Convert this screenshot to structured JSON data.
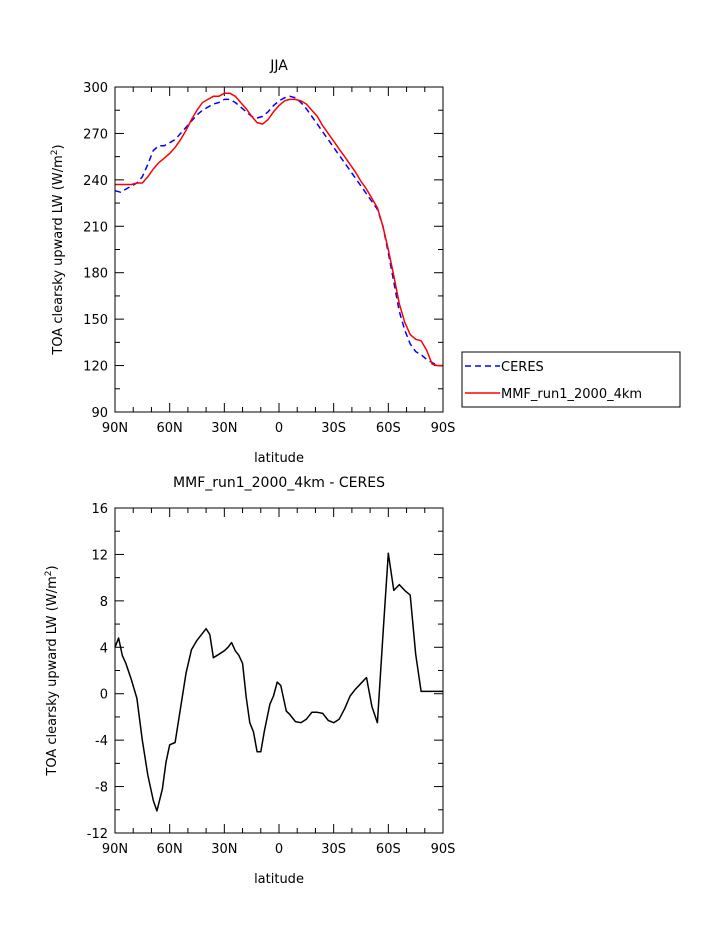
{
  "chart_data": [
    {
      "type": "line",
      "title": "JJA",
      "xlabel": "latitude",
      "ylabel_main": "TOA clearsky upward LW (W/m",
      "ylabel_sup": "2",
      "ylabel_end": ")",
      "xlim": [
        90,
        -90
      ],
      "ylim": [
        90,
        300
      ],
      "xticks": [
        90,
        60,
        30,
        0,
        -30,
        -60,
        -90
      ],
      "xtick_labels": [
        "90N",
        "60N",
        "30N",
        "0",
        "30S",
        "60S",
        "90S"
      ],
      "yticks": [
        90,
        120,
        150,
        180,
        210,
        240,
        270,
        300
      ],
      "ytick_labels": [
        "90",
        "120",
        "150",
        "180",
        "210",
        "240",
        "270",
        "300"
      ],
      "legend_position": "outside-right",
      "series": [
        {
          "name": "CERES",
          "color": "#0000ff",
          "dash": "dashed",
          "x": [
            90,
            87,
            84,
            81,
            78,
            75,
            72,
            69,
            66,
            63,
            60,
            57,
            54,
            51,
            48,
            45,
            42,
            39,
            36,
            33,
            30,
            27,
            24,
            21,
            18,
            15,
            12,
            9,
            6,
            3,
            0,
            -3,
            -6,
            -9,
            -12,
            -15,
            -18,
            -21,
            -24,
            -27,
            -30,
            -33,
            -36,
            -39,
            -42,
            -45,
            -48,
            -51,
            -54,
            -57,
            -60,
            -63,
            -66,
            -69,
            -72,
            -75,
            -78,
            -81,
            -84,
            -87,
            -90
          ],
          "y": [
            233,
            232,
            234,
            236,
            238,
            242,
            250,
            259,
            262,
            262,
            264,
            266,
            270,
            274,
            278,
            282,
            285,
            287,
            289,
            290,
            292,
            292,
            290,
            287,
            284,
            281,
            280,
            281,
            284,
            288,
            291,
            293,
            294,
            293,
            290,
            286,
            281,
            276,
            271,
            266,
            261,
            256,
            251,
            246,
            241,
            236,
            231,
            226,
            221,
            210,
            193,
            174,
            155,
            143,
            134,
            129,
            127,
            124,
            122,
            120,
            120
          ]
        },
        {
          "name": "MMF_run1_2000_4km",
          "color": "#ff0000",
          "dash": "solid",
          "x": [
            90,
            87,
            84,
            81,
            78,
            75,
            72,
            69,
            66,
            63,
            60,
            57,
            54,
            51,
            48,
            45,
            42,
            39,
            36,
            33,
            30,
            27,
            24,
            21,
            18,
            15,
            12,
            9,
            6,
            3,
            0,
            -3,
            -6,
            -9,
            -12,
            -15,
            -18,
            -21,
            -24,
            -27,
            -30,
            -33,
            -36,
            -39,
            -42,
            -45,
            -48,
            -51,
            -54,
            -57,
            -60,
            -63,
            -66,
            -69,
            -72,
            -75,
            -78,
            -81,
            -84,
            -87,
            -90
          ],
          "y": [
            237,
            237,
            237,
            237,
            238,
            238,
            242,
            247,
            251,
            254,
            257,
            261,
            266,
            272,
            279,
            285,
            290,
            292,
            294,
            294,
            296,
            296,
            294,
            290,
            286,
            281,
            277,
            276,
            279,
            284,
            288,
            291,
            292,
            292,
            291,
            289,
            285,
            281,
            275,
            270,
            265,
            260,
            255,
            250,
            245,
            239,
            234,
            228,
            222,
            210,
            195,
            178,
            160,
            148,
            140,
            137,
            136,
            130,
            121,
            120,
            120
          ]
        }
      ]
    },
    {
      "type": "line",
      "title": "MMF_run1_2000_4km - CERES",
      "xlabel": "latitude",
      "ylabel_main": "TOA clearsky upward LW (W/m",
      "ylabel_sup": "2",
      "ylabel_end": ")",
      "xlim": [
        90,
        -90
      ],
      "ylim": [
        -12,
        16
      ],
      "xticks": [
        90,
        60,
        30,
        0,
        -30,
        -60,
        -90
      ],
      "xtick_labels": [
        "90N",
        "60N",
        "30N",
        "0",
        "30S",
        "60S",
        "90S"
      ],
      "yticks": [
        -12,
        -8,
        -4,
        0,
        4,
        8,
        12,
        16
      ],
      "ytick_labels": [
        "-12",
        "-8",
        "-4",
        "0",
        "4",
        "8",
        "12",
        "16"
      ],
      "series": [
        {
          "color": "#000000",
          "dash": "solid",
          "x": [
            90,
            88,
            86,
            84,
            81,
            78,
            75,
            72,
            69,
            67,
            64,
            62,
            60,
            57,
            54,
            51,
            48,
            45,
            43,
            40,
            38,
            36,
            33,
            30,
            28,
            26,
            24,
            22,
            20,
            18,
            16,
            14,
            12,
            10,
            8,
            5,
            3,
            1,
            -1,
            -4,
            -6,
            -9,
            -12,
            -15,
            -18,
            -21,
            -24,
            -27,
            -30,
            -33,
            -36,
            -39,
            -42,
            -45,
            -48,
            -51,
            -54,
            -57,
            -60,
            -63,
            -66,
            -69,
            -72,
            -75,
            -78,
            -81,
            -84,
            -87,
            -90
          ],
          "y": [
            4.0,
            4.8,
            3.3,
            2.6,
            1.2,
            -0.4,
            -4.0,
            -7.0,
            -9.2,
            -10.1,
            -8.2,
            -5.9,
            -4.4,
            -4.2,
            -1.2,
            1.8,
            3.8,
            4.6,
            5.0,
            5.6,
            5.1,
            3.1,
            3.4,
            3.7,
            4.0,
            4.4,
            3.7,
            3.3,
            2.6,
            -0.3,
            -2.5,
            -3.3,
            -5.0,
            -5.0,
            -3.2,
            -0.9,
            -0.2,
            1.0,
            0.7,
            -1.5,
            -1.8,
            -2.4,
            -2.5,
            -2.2,
            -1.6,
            -1.6,
            -1.7,
            -2.3,
            -2.5,
            -2.2,
            -1.3,
            -0.2,
            0.4,
            0.9,
            1.4,
            -1.1,
            -2.5,
            5.0,
            12.1,
            8.9,
            9.4,
            8.9,
            8.5,
            3.4,
            0.2,
            0.2,
            0.2,
            0.2,
            0.2
          ]
        }
      ]
    }
  ]
}
